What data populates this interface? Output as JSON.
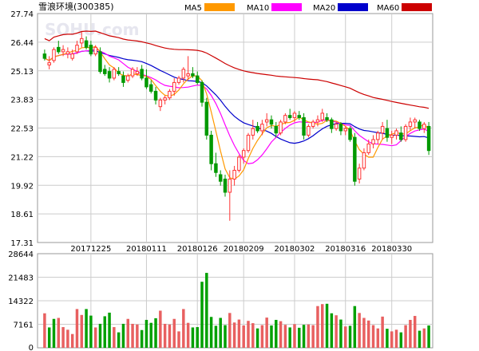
{
  "chart_data": {
    "type": "candlestick",
    "title": "雪浪环境(300385)",
    "watermark": "SOHU.com",
    "legend": [
      {
        "name": "MA5",
        "color": "#ff9900"
      },
      {
        "name": "MA10",
        "color": "#ff00ff"
      },
      {
        "name": "MA20",
        "color": "#0000cc"
      },
      {
        "name": "MA60",
        "color": "#cc0000"
      }
    ],
    "colors": {
      "up": "#ff3333",
      "down": "#009900",
      "grid": "#cccccc",
      "vol_up": "#e86060",
      "vol_down": "#00a000"
    },
    "price_axis": {
      "ticks": [
        "27.74",
        "26.44",
        "25.13",
        "23.83",
        "22.53",
        "21.22",
        "19.92",
        "18.61",
        "17.31"
      ],
      "min": 17.31,
      "max": 27.74
    },
    "volume_axis": {
      "ticks": [
        "28644",
        "21483",
        "14322",
        "7161",
        "0"
      ],
      "min": 0,
      "max": 28644
    },
    "date_labels": [
      {
        "label": "20171225",
        "index": 10
      },
      {
        "label": "20180111",
        "index": 22
      },
      {
        "label": "20180126",
        "index": 33
      },
      {
        "label": "20180209",
        "index": 43
      },
      {
        "label": "20180302",
        "index": 54
      },
      {
        "label": "20180316",
        "index": 65
      },
      {
        "label": "20180330",
        "index": 75
      }
    ],
    "candles": [
      [
        25.9,
        26.1,
        25.6,
        25.7
      ],
      [
        25.4,
        25.8,
        25.2,
        25.5
      ],
      [
        25.6,
        26.2,
        25.5,
        26.1
      ],
      [
        26.2,
        26.5,
        25.9,
        26.0
      ],
      [
        26.0,
        26.3,
        25.8,
        26.1
      ],
      [
        25.9,
        26.2,
        25.7,
        26.0
      ],
      [
        25.7,
        26.1,
        25.6,
        25.9
      ],
      [
        26.0,
        26.5,
        25.9,
        26.3
      ],
      [
        26.4,
        26.9,
        26.2,
        26.6
      ],
      [
        26.5,
        26.7,
        26.1,
        26.2
      ],
      [
        26.3,
        26.5,
        25.8,
        25.9
      ],
      [
        25.9,
        26.3,
        25.8,
        26.2
      ],
      [
        26.0,
        26.2,
        25.0,
        25.1
      ],
      [
        25.2,
        25.4,
        24.9,
        25.0
      ],
      [
        25.1,
        25.3,
        24.6,
        24.8
      ],
      [
        24.8,
        25.3,
        24.7,
        25.2
      ],
      [
        25.1,
        25.3,
        24.9,
        25.0
      ],
      [
        24.9,
        25.1,
        24.4,
        24.6
      ],
      [
        24.7,
        25.0,
        24.6,
        24.9
      ],
      [
        24.9,
        25.3,
        24.8,
        25.2
      ],
      [
        25.0,
        25.3,
        24.9,
        25.1
      ],
      [
        25.2,
        25.4,
        24.7,
        24.8
      ],
      [
        24.8,
        25.2,
        24.3,
        24.4
      ],
      [
        24.5,
        24.7,
        24.1,
        24.2
      ],
      [
        24.2,
        24.4,
        23.6,
        23.8
      ],
      [
        23.5,
        23.9,
        23.3,
        23.8
      ],
      [
        23.8,
        24.0,
        23.6,
        23.9
      ],
      [
        23.9,
        24.3,
        23.8,
        24.2
      ],
      [
        24.2,
        24.8,
        24.0,
        24.6
      ],
      [
        24.6,
        24.9,
        24.5,
        24.8
      ],
      [
        24.8,
        25.3,
        24.6,
        25.2
      ],
      [
        24.9,
        25.8,
        24.7,
        25.0
      ],
      [
        25.0,
        25.3,
        24.8,
        24.9
      ],
      [
        24.9,
        25.1,
        24.5,
        24.6
      ],
      [
        24.6,
        24.7,
        23.5,
        23.7
      ],
      [
        23.7,
        23.9,
        22.0,
        22.2
      ],
      [
        22.2,
        22.4,
        20.6,
        20.9
      ],
      [
        20.9,
        21.4,
        20.3,
        20.5
      ],
      [
        20.4,
        20.6,
        19.9,
        20.1
      ],
      [
        20.2,
        20.4,
        19.4,
        19.6
      ],
      [
        19.6,
        20.6,
        18.3,
        20.2
      ],
      [
        20.2,
        20.8,
        19.9,
        20.6
      ],
      [
        20.6,
        21.3,
        20.5,
        21.2
      ],
      [
        21.2,
        21.6,
        20.9,
        21.5
      ],
      [
        21.5,
        22.3,
        21.4,
        22.2
      ],
      [
        22.2,
        22.9,
        22.0,
        22.5
      ],
      [
        22.6,
        22.8,
        22.3,
        22.4
      ],
      [
        22.4,
        22.9,
        22.2,
        22.7
      ],
      [
        22.8,
        23.2,
        22.6,
        22.9
      ],
      [
        22.9,
        23.1,
        22.5,
        22.7
      ],
      [
        22.6,
        22.8,
        22.1,
        22.3
      ],
      [
        22.3,
        22.9,
        22.2,
        22.8
      ],
      [
        22.8,
        23.2,
        22.7,
        23.1
      ],
      [
        23.1,
        23.4,
        22.9,
        23.0
      ],
      [
        23.0,
        23.3,
        22.8,
        23.2
      ],
      [
        23.1,
        23.3,
        22.9,
        23.0
      ],
      [
        23.0,
        23.2,
        22.0,
        22.2
      ],
      [
        22.2,
        22.7,
        22.1,
        22.6
      ],
      [
        22.6,
        22.9,
        22.5,
        22.8
      ],
      [
        22.8,
        23.1,
        22.6,
        22.9
      ],
      [
        22.9,
        23.4,
        22.8,
        23.2
      ],
      [
        23.0,
        23.2,
        22.8,
        22.9
      ],
      [
        22.9,
        23.0,
        22.3,
        22.5
      ],
      [
        22.5,
        22.8,
        22.4,
        22.7
      ],
      [
        22.7,
        22.8,
        22.2,
        22.4
      ],
      [
        22.4,
        22.6,
        22.2,
        22.5
      ],
      [
        22.5,
        22.6,
        21.9,
        22.0
      ],
      [
        22.1,
        22.3,
        19.9,
        20.1
      ],
      [
        20.2,
        20.9,
        20.0,
        20.7
      ],
      [
        20.7,
        21.6,
        20.6,
        21.4
      ],
      [
        21.4,
        22.0,
        21.3,
        21.8
      ],
      [
        21.8,
        22.2,
        21.6,
        22.0
      ],
      [
        22.0,
        22.4,
        21.8,
        22.3
      ],
      [
        22.3,
        22.8,
        22.0,
        22.6
      ],
      [
        22.5,
        22.9,
        21.9,
        22.1
      ],
      [
        22.1,
        22.4,
        21.8,
        22.2
      ],
      [
        22.2,
        22.5,
        22.0,
        22.4
      ],
      [
        22.3,
        22.6,
        21.9,
        22.0
      ],
      [
        22.0,
        22.7,
        21.9,
        22.6
      ],
      [
        22.6,
        23.0,
        22.4,
        22.8
      ],
      [
        22.8,
        23.0,
        22.5,
        22.9
      ],
      [
        22.8,
        22.9,
        22.4,
        22.5
      ],
      [
        22.5,
        22.8,
        22.3,
        22.7
      ],
      [
        22.6,
        22.8,
        21.3,
        21.5
      ]
    ],
    "volumes": [
      [
        10500,
        "up"
      ],
      [
        6200,
        "down"
      ],
      [
        8800,
        "down"
      ],
      [
        9100,
        "up"
      ],
      [
        6300,
        "up"
      ],
      [
        5500,
        "up"
      ],
      [
        4200,
        "up"
      ],
      [
        11800,
        "up"
      ],
      [
        10000,
        "up"
      ],
      [
        11800,
        "down"
      ],
      [
        9800,
        "down"
      ],
      [
        6200,
        "up"
      ],
      [
        7300,
        "down"
      ],
      [
        9600,
        "down"
      ],
      [
        10700,
        "down"
      ],
      [
        6300,
        "up"
      ],
      [
        4700,
        "down"
      ],
      [
        7300,
        "down"
      ],
      [
        8800,
        "up"
      ],
      [
        7300,
        "up"
      ],
      [
        7100,
        "up"
      ],
      [
        5400,
        "down"
      ],
      [
        8500,
        "down"
      ],
      [
        7600,
        "down"
      ],
      [
        9000,
        "down"
      ],
      [
        11300,
        "up"
      ],
      [
        7300,
        "up"
      ],
      [
        7100,
        "up"
      ],
      [
        8800,
        "up"
      ],
      [
        5000,
        "up"
      ],
      [
        11800,
        "up"
      ],
      [
        7600,
        "up"
      ],
      [
        6200,
        "down"
      ],
      [
        6300,
        "down"
      ],
      [
        20100,
        "down"
      ],
      [
        22800,
        "down"
      ],
      [
        9400,
        "down"
      ],
      [
        6700,
        "down"
      ],
      [
        9100,
        "down"
      ],
      [
        6900,
        "down"
      ],
      [
        10600,
        "up"
      ],
      [
        7700,
        "up"
      ],
      [
        8600,
        "up"
      ],
      [
        6800,
        "up"
      ],
      [
        8200,
        "up"
      ],
      [
        7500,
        "up"
      ],
      [
        5900,
        "down"
      ],
      [
        6900,
        "up"
      ],
      [
        9200,
        "up"
      ],
      [
        6800,
        "down"
      ],
      [
        8500,
        "down"
      ],
      [
        8100,
        "up"
      ],
      [
        7000,
        "up"
      ],
      [
        6200,
        "down"
      ],
      [
        7200,
        "up"
      ],
      [
        6100,
        "down"
      ],
      [
        7000,
        "down"
      ],
      [
        7100,
        "up"
      ],
      [
        6900,
        "up"
      ],
      [
        12700,
        "up"
      ],
      [
        13300,
        "up"
      ],
      [
        13400,
        "down"
      ],
      [
        10500,
        "down"
      ],
      [
        9900,
        "up"
      ],
      [
        8600,
        "down"
      ],
      [
        6500,
        "up"
      ],
      [
        6700,
        "down"
      ],
      [
        12700,
        "down"
      ],
      [
        10600,
        "up"
      ],
      [
        9100,
        "up"
      ],
      [
        8300,
        "up"
      ],
      [
        6900,
        "up"
      ],
      [
        5900,
        "up"
      ],
      [
        9500,
        "up"
      ],
      [
        5800,
        "down"
      ],
      [
        5000,
        "up"
      ],
      [
        5500,
        "up"
      ],
      [
        4700,
        "down"
      ],
      [
        6900,
        "up"
      ],
      [
        8500,
        "up"
      ],
      [
        9700,
        "up"
      ],
      [
        5200,
        "down"
      ],
      [
        5900,
        "up"
      ],
      [
        6800,
        "down"
      ]
    ]
  }
}
